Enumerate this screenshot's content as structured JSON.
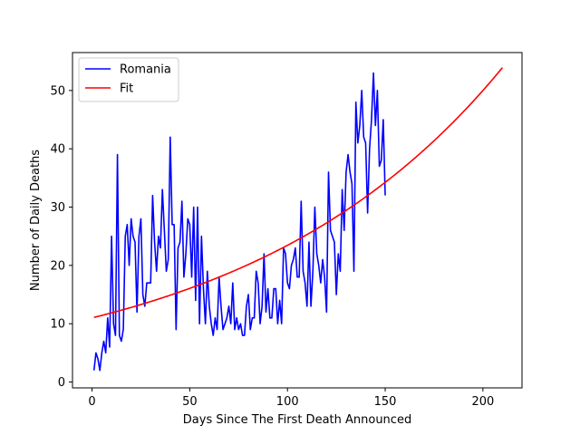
{
  "chart_data": {
    "type": "line",
    "xlabel": "Days Since The First Death Announced",
    "ylabel": "Number of Daily Deaths",
    "xlim": [
      -10,
      220
    ],
    "ylim": [
      -1,
      56.5
    ],
    "xticks": [
      0,
      50,
      100,
      150,
      200
    ],
    "yticks": [
      0,
      10,
      20,
      30,
      40,
      50
    ],
    "grid": false,
    "legend_position": "top-left",
    "series": [
      {
        "name": "Romania",
        "color": "#0000ff",
        "x": [
          1,
          2,
          3,
          4,
          5,
          6,
          7,
          8,
          9,
          10,
          11,
          12,
          13,
          14,
          15,
          16,
          17,
          18,
          19,
          20,
          21,
          22,
          23,
          24,
          25,
          26,
          27,
          28,
          29,
          30,
          31,
          32,
          33,
          34,
          35,
          36,
          37,
          38,
          39,
          40,
          41,
          42,
          43,
          44,
          45,
          46,
          47,
          48,
          49,
          50,
          51,
          52,
          53,
          54,
          55,
          56,
          57,
          58,
          59,
          60,
          61,
          62,
          63,
          64,
          65,
          66,
          67,
          68,
          69,
          70,
          71,
          72,
          73,
          74,
          75,
          76,
          77,
          78,
          79,
          80,
          81,
          82,
          83,
          84,
          85,
          86,
          87,
          88,
          89,
          90,
          91,
          92,
          93,
          94,
          95,
          96,
          97,
          98,
          99,
          100,
          101,
          102,
          103,
          104,
          105,
          106,
          107,
          108,
          109,
          110,
          111,
          112,
          113,
          114,
          115,
          116,
          117,
          118,
          119,
          120,
          121,
          122,
          123,
          124,
          125,
          126,
          127,
          128,
          129,
          130,
          131,
          132,
          133,
          134,
          135,
          136,
          137,
          138,
          139,
          140,
          141,
          142,
          143,
          144,
          145,
          146,
          147,
          148,
          149,
          150
        ],
        "y": [
          2,
          5,
          4,
          2,
          5,
          7,
          5,
          11,
          6,
          25,
          10,
          8,
          39,
          8,
          7,
          9,
          25,
          27,
          20,
          28,
          25,
          24,
          12,
          25,
          28,
          15,
          13,
          17,
          17,
          17,
          32,
          24,
          19,
          25,
          23,
          33,
          26,
          19,
          21,
          42,
          27,
          27,
          9,
          23,
          24,
          31,
          18,
          22,
          28,
          27,
          18,
          30,
          14,
          30,
          10,
          25,
          16,
          10,
          19,
          13,
          10,
          8,
          11,
          9,
          18,
          13,
          9,
          10,
          11,
          13,
          10,
          17,
          9,
          11,
          9,
          10,
          8,
          8,
          13,
          15,
          9,
          11,
          11,
          19,
          17,
          10,
          13,
          22,
          12,
          16,
          11,
          11,
          16,
          16,
          10,
          14,
          10,
          23,
          22,
          17,
          16,
          20,
          21,
          23,
          18,
          18,
          31,
          19,
          17,
          13,
          24,
          13,
          19,
          30,
          22,
          20,
          17,
          21,
          18,
          12,
          36,
          26,
          25,
          24,
          15,
          22,
          19,
          33,
          26,
          36,
          39,
          36,
          34,
          19,
          48,
          41,
          44,
          50,
          42,
          41,
          29,
          40,
          45,
          53,
          44,
          50,
          37,
          38,
          45,
          32
        ]
      },
      {
        "name": "Fit",
        "color": "#ff0000",
        "fit": {
          "model": "exponential",
          "a": 11.0,
          "b": 0.00757,
          "x_start": 1,
          "x_end": 210
        }
      }
    ]
  }
}
